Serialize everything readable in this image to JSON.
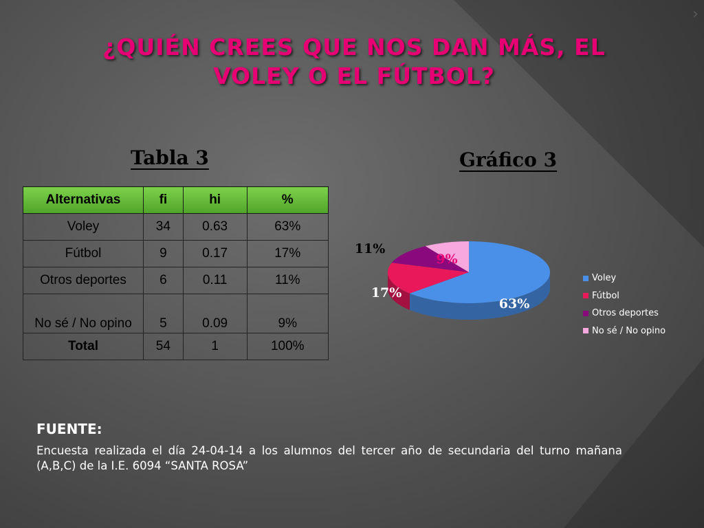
{
  "slide": {
    "title": "¿Quién crees que nos dan más, el voley o el fútbol?",
    "table_heading": "Tabla 3",
    "chart_heading": "Gráfico 3",
    "source_label": "FUENTE:",
    "source_text": "Encuesta realizada el día 24-04-14 a los alumnos del tercer año de secundaria del turno mañana (A,B,C) de la I.E. 6094 “SANTA ROSA”"
  },
  "table": {
    "headers": [
      "Alternativas",
      "fi",
      "hi",
      "%"
    ],
    "rows": [
      [
        "Voley",
        "34",
        "0.63",
        "63%"
      ],
      [
        "Fútbol",
        "9",
        "0.17",
        "17%"
      ],
      [
        "Otros deportes",
        "6",
        "0.11",
        "11%"
      ],
      [
        "No sé / No opino",
        "5",
        "0.09",
        "9%"
      ]
    ],
    "total": [
      "Total",
      "54",
      "1",
      "100%"
    ]
  },
  "chart_data": {
    "type": "pie",
    "title": "",
    "categories": [
      "Voley",
      "Fútbol",
      "Otros deportes",
      "No sé / No opino"
    ],
    "values": [
      63,
      17,
      11,
      9
    ],
    "labels": [
      "63%",
      "17%",
      "11%",
      "9%"
    ],
    "colors": [
      "#4a90e8",
      "#e8185a",
      "#8a0a7e",
      "#f7a8df"
    ],
    "legend_position": "right",
    "style": "3d"
  },
  "colors": {
    "title": "#e60073",
    "table_header": "#5cb336",
    "background": "#575757"
  }
}
